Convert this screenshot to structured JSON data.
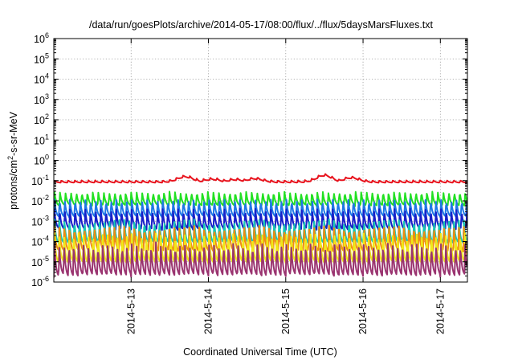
{
  "chart_data": {
    "type": "line",
    "title": "/data/run/goesPlots/archive/2014-05-17/08:00/flux/../flux/5daysMarsFluxes.txt",
    "xlabel": "Coordinated Universal Time (UTC)",
    "ylabel": {
      "base": "protons/cm",
      "sup": "2",
      "rest": "-s-sr-MeV"
    },
    "yscale": "log",
    "ylim": [
      1e-06,
      1000000.0
    ],
    "y_ticks": [
      {
        "value": 1e-06,
        "base": "10",
        "exp": "-6"
      },
      {
        "value": 1e-05,
        "base": "10",
        "exp": "-5"
      },
      {
        "value": 0.0001,
        "base": "10",
        "exp": "-4"
      },
      {
        "value": 0.001,
        "base": "10",
        "exp": "-3"
      },
      {
        "value": 0.01,
        "base": "10",
        "exp": "-2"
      },
      {
        "value": 0.1,
        "base": "10",
        "exp": "-1"
      },
      {
        "value": 1,
        "base": "10",
        "exp": "0"
      },
      {
        "value": 10.0,
        "base": "10",
        "exp": "1"
      },
      {
        "value": 100.0,
        "base": "10",
        "exp": "2"
      },
      {
        "value": 1000.0,
        "base": "10",
        "exp": "3"
      },
      {
        "value": 10000.0,
        "base": "10",
        "exp": "4"
      },
      {
        "value": 100000.0,
        "base": "10",
        "exp": "5"
      },
      {
        "value": 1000000.0,
        "base": "10",
        "exp": "6"
      }
    ],
    "x_range_days": [
      2014.0512,
      2014.0517
    ],
    "x_ticks": [
      "2014-5-13",
      "2014-5-14",
      "2014-5-15",
      "2014-5-16",
      "2014-5-17"
    ],
    "grid": true,
    "series": [
      {
        "color": "#e8141e",
        "base": 0.09,
        "amp": 0.45,
        "tooth_period_h": 2.1,
        "bumps": [
          [
            5.0,
            1.8
          ],
          [
            5.35,
            1.35
          ],
          [
            5.65,
            1.3
          ],
          [
            5.9,
            1.45
          ],
          [
            6.8,
            2.1
          ],
          [
            7.15,
            1.6
          ]
        ]
      },
      {
        "color": "#22e022",
        "base": 0.0125,
        "amp": 0.7,
        "tooth_period_h": 1.7
      },
      {
        "color": "#1e78e6",
        "base": 0.0042,
        "amp": 0.85,
        "tooth_period_h": 1.6
      },
      {
        "color": "#1820c8",
        "base": 0.0012,
        "amp": 1.0,
        "tooth_period_h": 1.6
      },
      {
        "color": "#18c8b4",
        "base": 0.0003,
        "amp": 1.2,
        "tooth_period_h": 1.55
      },
      {
        "color": "#f08c10",
        "base": 0.00013,
        "amp": 1.3,
        "tooth_period_h": 1.55
      },
      {
        "color": "#f0e81a",
        "base": 4.5e-05,
        "amp": 1.5,
        "tooth_period_h": 1.5
      },
      {
        "color": "#9a3470",
        "base": 1.2e-05,
        "amp": 1.65,
        "tooth_period_h": 1.5
      }
    ]
  }
}
